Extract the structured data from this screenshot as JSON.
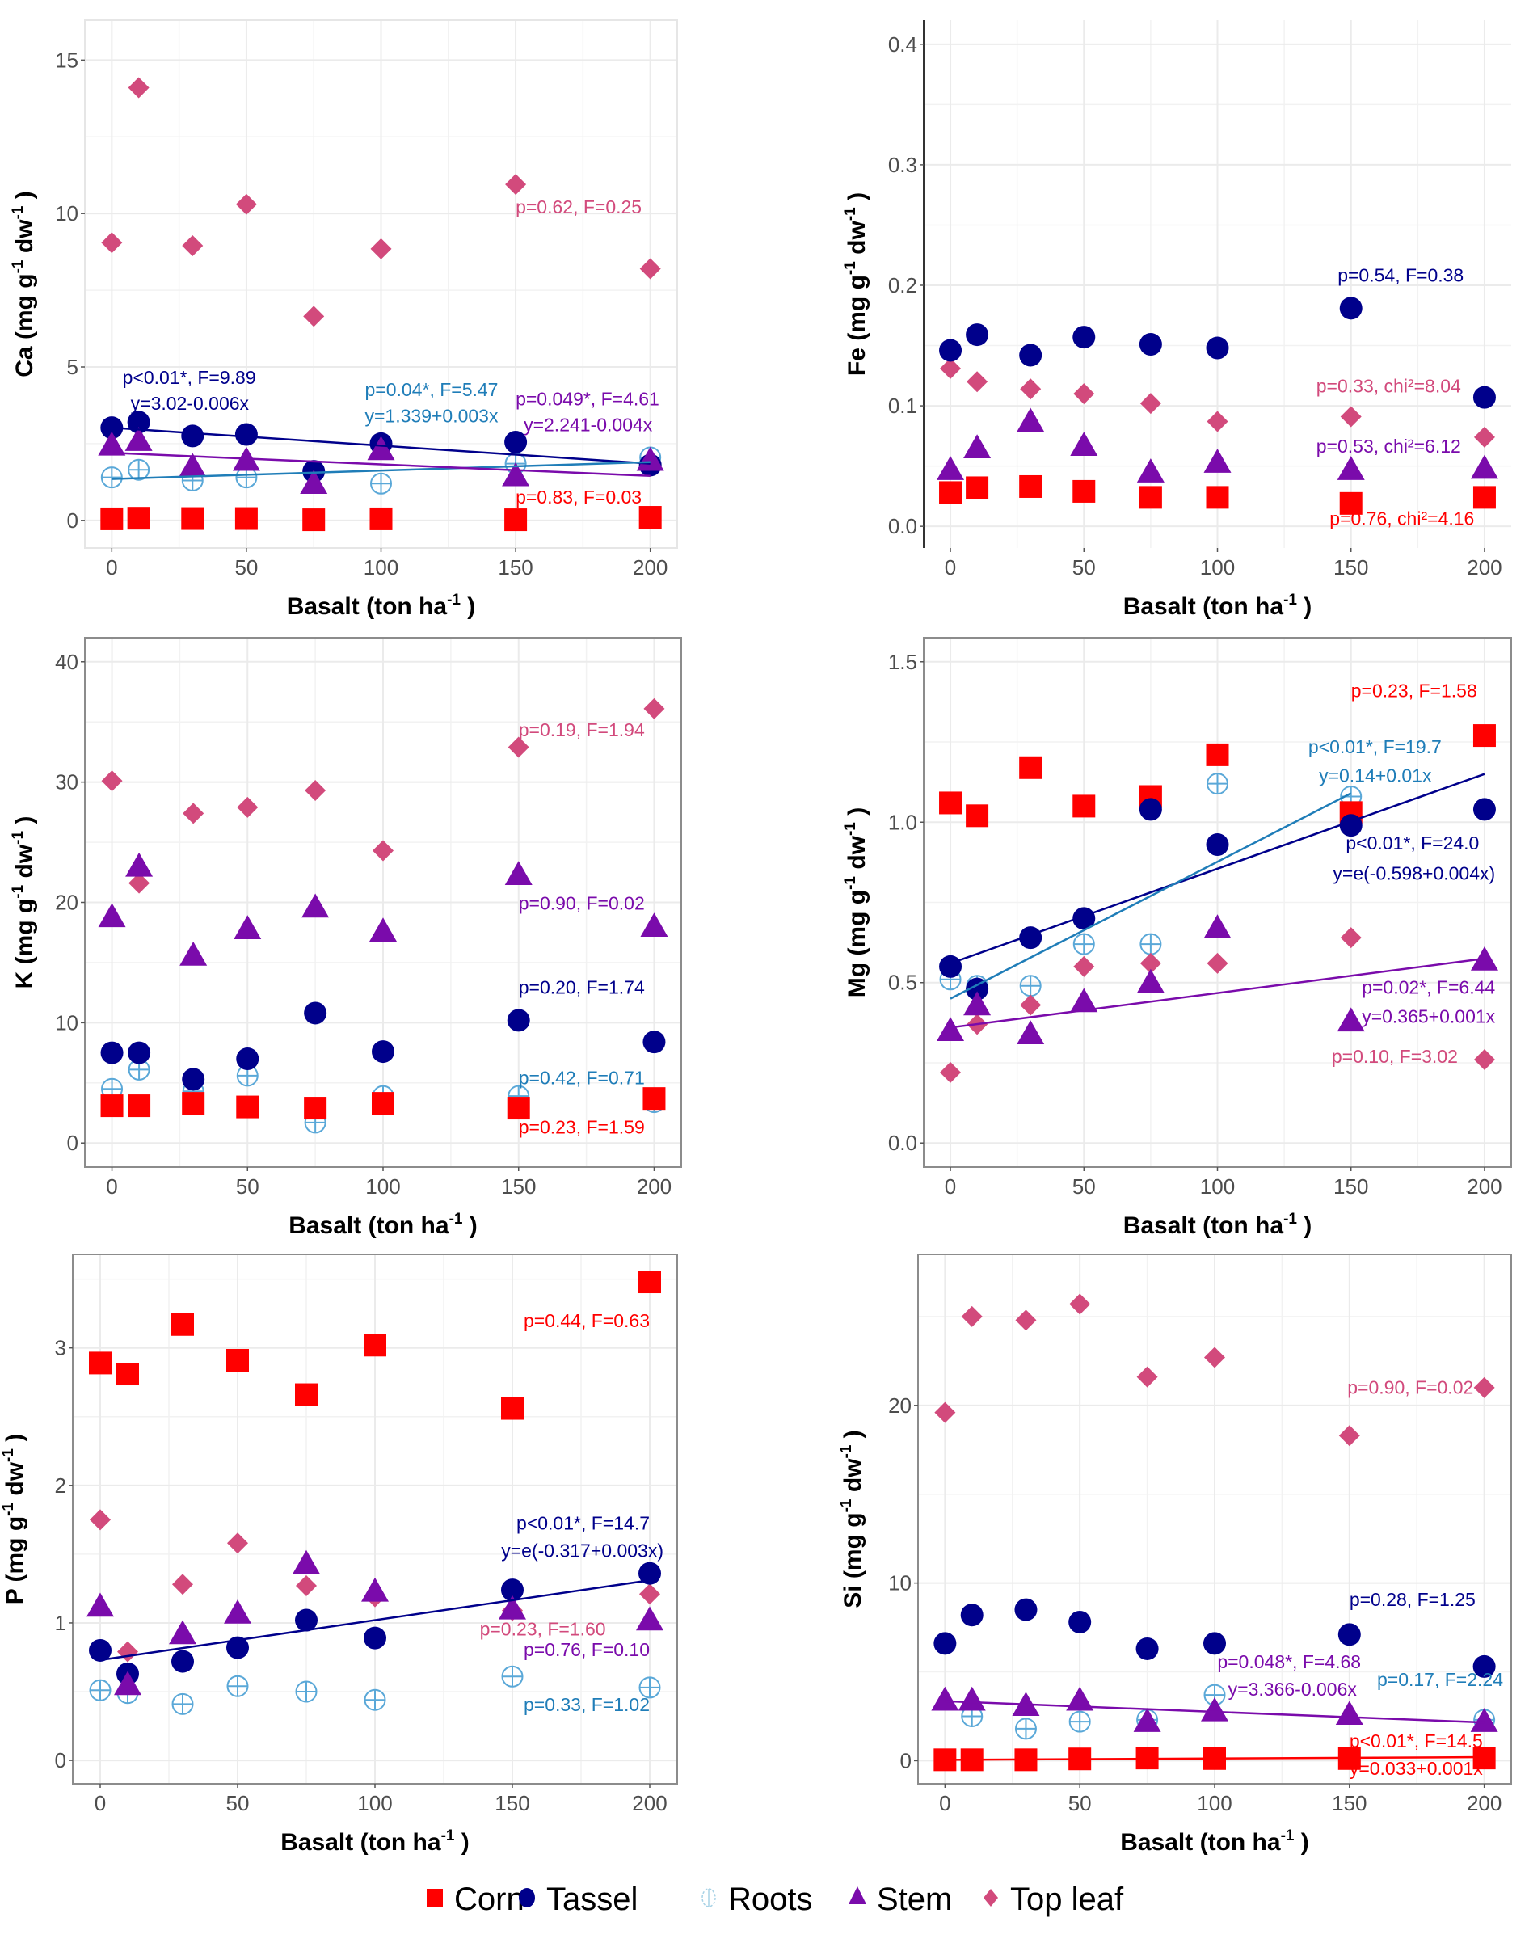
{
  "chart_data": [
    {
      "type": "scatter",
      "panel": "Ca",
      "ylabel": "Ca (mg g-1 dw-1 )",
      "ylabel_main": "Ca (mg g",
      "ylabel_unit": "dw",
      "ylabel_sup": "-1",
      "xlabel_main": "Basalt (ton ha",
      "xlabel_sup": "-1",
      "xlabel_end": " )",
      "x": [
        0,
        10,
        30,
        50,
        75,
        100,
        150,
        200
      ],
      "xticks": [
        0,
        50,
        100,
        150,
        200
      ],
      "yticks": [
        0,
        5,
        10,
        15
      ],
      "ytick_labels": [
        "0",
        "5",
        "10",
        "15"
      ],
      "ylim": [
        -0.9,
        16.3
      ],
      "xlim": [
        -10,
        210
      ],
      "frame": "box-light",
      "series": [
        {
          "name": "Corn",
          "values": [
            0.05,
            0.07,
            0.06,
            0.06,
            0.02,
            0.05,
            0.02,
            0.1
          ]
        },
        {
          "name": "Tassel",
          "values": [
            3.02,
            3.2,
            2.75,
            2.8,
            1.6,
            2.5,
            2.55,
            1.8
          ]
        },
        {
          "name": "Roots",
          "values": [
            1.4,
            1.65,
            1.3,
            1.4,
            1.6,
            1.2,
            1.85,
            2.05
          ]
        },
        {
          "name": "Stem",
          "values": [
            2.45,
            2.6,
            1.75,
            1.95,
            1.2,
            2.3,
            1.45,
            1.95
          ]
        },
        {
          "name": "Top leaf",
          "values": [
            9.05,
            14.1,
            8.95,
            10.3,
            6.65,
            8.85,
            10.95,
            8.2
          ]
        }
      ],
      "fits": [
        {
          "series": "Tassel",
          "x0": 0,
          "y0": 3.02,
          "x1": 200,
          "y1": 1.85
        },
        {
          "series": "Roots",
          "x0": 0,
          "y0": 1.35,
          "x1": 200,
          "y1": 1.9
        },
        {
          "series": "Stem",
          "x0": 0,
          "y0": 2.2,
          "x1": 200,
          "y1": 1.45
        }
      ],
      "annotations": [
        {
          "text": "p=0.62, F=0.25",
          "series": "Top leaf",
          "x": 150,
          "y": 10.0,
          "anchor": "start"
        },
        {
          "text": "p<0.01*, F=9.89",
          "series": "Tassel",
          "x": 4,
          "y": 4.45,
          "anchor": "start"
        },
        {
          "text": "y=3.02-0.006x",
          "series": "Tassel",
          "x": 7,
          "y": 3.6,
          "anchor": "start"
        },
        {
          "text": "p=0.04*, F=5.47",
          "series": "Roots",
          "x": 94,
          "y": 4.05,
          "anchor": "start"
        },
        {
          "text": "y=1.339+0.003x",
          "series": "Roots",
          "x": 94,
          "y": 3.2,
          "anchor": "start"
        },
        {
          "text": "p=0.049*, F=4.61",
          "series": "Stem",
          "x": 150,
          "y": 3.75,
          "anchor": "start"
        },
        {
          "text": "y=2.241-0.004x",
          "series": "Stem",
          "x": 153,
          "y": 2.9,
          "anchor": "start"
        },
        {
          "text": "p=0.83, F=0.03",
          "series": "Corn",
          "x": 150,
          "y": 0.55,
          "anchor": "start"
        }
      ]
    },
    {
      "type": "scatter",
      "panel": "Fe",
      "ylabel_main": "Fe (mg g",
      "ylabel_unit": "dw",
      "ylabel_sup": "-1",
      "xlabel_main": "Basalt (ton ha",
      "xlabel_sup": "-1",
      "xlabel_end": " )",
      "x": [
        0,
        10,
        30,
        50,
        75,
        100,
        150,
        200
      ],
      "xticks": [
        0,
        50,
        100,
        150,
        200
      ],
      "yticks": [
        0.0,
        0.1,
        0.2,
        0.3,
        0.4
      ],
      "ytick_labels": [
        "0.0",
        "0.1",
        "0.2",
        "0.3",
        "0.4"
      ],
      "ylim": [
        -0.018,
        0.42
      ],
      "xlim": [
        -10,
        210
      ],
      "frame": "left-axis",
      "series": [
        {
          "name": "Corn",
          "values": [
            0.028,
            0.032,
            0.033,
            0.029,
            0.024,
            0.024,
            0.019,
            0.024
          ]
        },
        {
          "name": "Tassel",
          "values": [
            0.146,
            0.159,
            0.142,
            0.157,
            0.151,
            0.148,
            0.181,
            0.107
          ]
        },
        {
          "name": "Stem",
          "values": [
            0.047,
            0.065,
            0.087,
            0.067,
            0.045,
            0.053,
            0.047,
            0.048
          ]
        },
        {
          "name": "Top leaf",
          "values": [
            0.131,
            0.12,
            0.114,
            0.11,
            0.102,
            0.087,
            0.091,
            0.074
          ]
        }
      ],
      "fits": [],
      "annotations": [
        {
          "text": "p=0.54, F=0.38",
          "series": "Tassel",
          "x": 145,
          "y": 0.203,
          "anchor": "start"
        },
        {
          "text": "p=0.33, chi²=8.04",
          "series": "Top leaf",
          "x": 137,
          "y": 0.111,
          "anchor": "start"
        },
        {
          "text": "p=0.53, chi²=6.12",
          "series": "Stem",
          "x": 137,
          "y": 0.061,
          "anchor": "start"
        },
        {
          "text": "p=0.76, chi²=4.16",
          "series": "Corn",
          "x": 142,
          "y": 0.001,
          "anchor": "start"
        }
      ]
    },
    {
      "type": "scatter",
      "panel": "K",
      "ylabel_main": "K (mg g",
      "ylabel_unit": "dw",
      "ylabel_sup": "-1",
      "xlabel_main": "Basalt (ton ha",
      "xlabel_sup": "-1",
      "xlabel_end": " )",
      "x": [
        0,
        10,
        30,
        50,
        75,
        100,
        150,
        200
      ],
      "xticks": [
        0,
        50,
        100,
        150,
        200
      ],
      "yticks": [
        0,
        10,
        20,
        30,
        40
      ],
      "ytick_labels": [
        "0",
        "10",
        "20",
        "30",
        "40"
      ],
      "ylim": [
        -2,
        42
      ],
      "xlim": [
        -10,
        210
      ],
      "frame": "box",
      "series": [
        {
          "name": "Corn",
          "values": [
            3.1,
            3.1,
            3.3,
            3.0,
            2.9,
            3.3,
            2.9,
            3.7
          ]
        },
        {
          "name": "Tassel",
          "values": [
            7.5,
            7.5,
            5.3,
            7.0,
            10.8,
            7.6,
            10.2,
            8.4
          ]
        },
        {
          "name": "Roots",
          "values": [
            4.5,
            6.1,
            4.3,
            5.6,
            1.7,
            3.9,
            3.9,
            3.4
          ]
        },
        {
          "name": "Stem",
          "values": [
            18.8,
            23.0,
            15.6,
            17.8,
            19.6,
            17.6,
            22.3,
            18.0
          ]
        },
        {
          "name": "Top leaf",
          "values": [
            30.1,
            21.6,
            27.4,
            27.9,
            29.3,
            24.3,
            32.9,
            36.1
          ]
        }
      ],
      "fits": [],
      "annotations": [
        {
          "text": "p=0.19, F=1.94",
          "series": "Top leaf",
          "x": 150,
          "y": 33.8,
          "anchor": "start"
        },
        {
          "text": "p=0.90, F=0.02",
          "series": "Stem",
          "x": 150,
          "y": 19.4,
          "anchor": "start"
        },
        {
          "text": "p=0.20, F=1.74",
          "series": "Tassel",
          "x": 150,
          "y": 12.4,
          "anchor": "start"
        },
        {
          "text": "p=0.42, F=0.71",
          "series": "Roots",
          "x": 150,
          "y": 4.9,
          "anchor": "start"
        },
        {
          "text": "p=0.23, F=1.59",
          "series": "Corn",
          "x": 150,
          "y": 0.8,
          "anchor": "start"
        }
      ]
    },
    {
      "type": "scatter",
      "panel": "Mg",
      "ylabel_main": "Mg (mg g",
      "ylabel_unit": "dw",
      "ylabel_sup": "-1",
      "xlabel_main": "Basalt (ton ha",
      "xlabel_sup": "-1",
      "xlabel_end": " )",
      "x": [
        0,
        10,
        30,
        50,
        75,
        100,
        150,
        200
      ],
      "xticks": [
        0,
        50,
        100,
        150,
        200
      ],
      "yticks": [
        0.0,
        0.5,
        1.0,
        1.5
      ],
      "ytick_labels": [
        "0.0",
        "0.5",
        "1.0",
        "1.5"
      ],
      "ylim": [
        -0.075,
        1.575
      ],
      "xlim": [
        -10,
        210
      ],
      "frame": "box",
      "series": [
        {
          "name": "Corn",
          "values": [
            1.06,
            1.02,
            1.17,
            1.05,
            1.08,
            1.21,
            1.03,
            1.27
          ]
        },
        {
          "name": "Tassel",
          "values": [
            0.55,
            0.48,
            0.64,
            0.7,
            1.04,
            0.93,
            0.99,
            1.04
          ]
        },
        {
          "name": "Roots",
          "values": [
            0.51,
            0.49,
            0.49,
            0.62,
            0.62,
            1.12,
            1.08,
            null
          ]
        },
        {
          "name": "Stem",
          "values": [
            0.35,
            0.43,
            0.34,
            0.44,
            0.5,
            0.67,
            0.38,
            0.57
          ]
        },
        {
          "name": "Top leaf",
          "values": [
            0.22,
            0.37,
            0.43,
            0.55,
            0.56,
            0.56,
            0.64,
            0.26
          ]
        }
      ],
      "fits": [
        {
          "series": "Tassel",
          "x0": 0,
          "y0": 0.56,
          "x1": 200,
          "y1": 1.15
        },
        {
          "series": "Roots",
          "x0": 0,
          "y0": 0.45,
          "x1": 150,
          "y1": 1.09
        },
        {
          "series": "Stem",
          "x0": 0,
          "y0": 0.36,
          "x1": 200,
          "y1": 0.575
        }
      ],
      "annotations": [
        {
          "text": "p=0.23, F=1.58",
          "series": "Corn",
          "x": 150,
          "y": 1.39,
          "anchor": "start"
        },
        {
          "text": "p<0.01*, F=19.7",
          "series": "Roots",
          "x": 134,
          "y": 1.215,
          "anchor": "start"
        },
        {
          "text": "y=0.14+0.01x",
          "series": "Roots",
          "x": 138,
          "y": 1.125,
          "anchor": "start"
        },
        {
          "text": "p<0.01*, F=24.0",
          "series": "Tassel",
          "x": 198,
          "y": 0.915,
          "anchor": "end"
        },
        {
          "text": "y=e(-0.598+0.004x)",
          "series": "Tassel",
          "x": 204,
          "y": 0.82,
          "anchor": "end"
        },
        {
          "text": "p=0.02*, F=6.44",
          "series": "Stem",
          "x": 204,
          "y": 0.465,
          "anchor": "end"
        },
        {
          "text": "y=0.365+0.001x",
          "series": "Stem",
          "x": 204,
          "y": 0.375,
          "anchor": "end"
        },
        {
          "text": "p=0.10, F=3.02",
          "series": "Top leaf",
          "x": 190,
          "y": 0.25,
          "anchor": "end"
        }
      ]
    },
    {
      "type": "scatter",
      "panel": "P",
      "ylabel_main": "P (mg g",
      "ylabel_unit": "dw",
      "ylabel_sup": "-1",
      "xlabel_main": "Basalt (ton ha",
      "xlabel_sup": "-1",
      "xlabel_end": " )",
      "x": [
        0,
        10,
        30,
        50,
        75,
        100,
        150,
        200
      ],
      "xticks": [
        0,
        50,
        100,
        150,
        200
      ],
      "yticks": [
        0,
        1,
        2,
        3
      ],
      "ytick_labels": [
        "0",
        "1",
        "2",
        "3"
      ],
      "ylim": [
        -0.17,
        3.68
      ],
      "xlim": [
        -10,
        210
      ],
      "frame": "box",
      "series": [
        {
          "name": "Corn",
          "values": [
            2.89,
            2.81,
            3.17,
            2.91,
            2.66,
            3.02,
            2.56,
            3.48
          ]
        },
        {
          "name": "Tassel",
          "values": [
            0.8,
            0.63,
            0.72,
            0.82,
            1.02,
            0.89,
            1.24,
            1.36
          ]
        },
        {
          "name": "Roots",
          "values": [
            0.51,
            0.49,
            0.41,
            0.54,
            0.5,
            0.44,
            0.61,
            0.53
          ]
        },
        {
          "name": "Stem",
          "values": [
            1.12,
            0.55,
            0.92,
            1.07,
            1.43,
            1.23,
            1.1,
            1.02
          ]
        },
        {
          "name": "Top leaf",
          "values": [
            1.75,
            0.79,
            1.28,
            1.58,
            1.27,
            1.19,
            1.09,
            1.21
          ]
        }
      ],
      "fits": [
        {
          "series": "Tassel",
          "x0": 0,
          "y0": 0.73,
          "x1": 200,
          "y1": 1.31
        }
      ],
      "annotations": [
        {
          "text": "p=0.44, F=0.63",
          "series": "Corn",
          "x": 200,
          "y": 3.15,
          "anchor": "end"
        },
        {
          "text": "p<0.01*, F=14.7",
          "series": "Tassel",
          "x": 200,
          "y": 1.68,
          "anchor": "end"
        },
        {
          "text": "y=e(-0.317+0.003x)",
          "series": "Tassel",
          "x": 205,
          "y": 1.48,
          "anchor": "end"
        },
        {
          "text": "p=0.23, F=1.60",
          "series": "Top leaf",
          "x": 184,
          "y": 0.91,
          "anchor": "end"
        },
        {
          "text": "p=0.76, F=0.10",
          "series": "Stem",
          "x": 200,
          "y": 0.76,
          "anchor": "end"
        },
        {
          "text": "p=0.33, F=1.02",
          "series": "Roots",
          "x": 200,
          "y": 0.36,
          "anchor": "end"
        }
      ]
    },
    {
      "type": "scatter",
      "panel": "Si",
      "ylabel_main": "Si (mg g",
      "ylabel_unit": "dw",
      "ylabel_sup": "-1",
      "xlabel_main": "Basalt (ton ha",
      "xlabel_sup": "-1",
      "xlabel_end": " )",
      "x": [
        0,
        10,
        30,
        50,
        75,
        100,
        150,
        200
      ],
      "xticks": [
        0,
        50,
        100,
        150,
        200
      ],
      "yticks": [
        0,
        10,
        20
      ],
      "ytick_labels": [
        "0",
        "10",
        "20"
      ],
      "ylim": [
        -1.3,
        28.5
      ],
      "xlim": [
        -10,
        210
      ],
      "frame": "box",
      "series": [
        {
          "name": "Corn",
          "values": [
            0.05,
            0.05,
            0.05,
            0.1,
            0.15,
            0.12,
            0.12,
            0.15
          ]
        },
        {
          "name": "Tassel",
          "values": [
            6.6,
            8.2,
            8.5,
            7.8,
            6.3,
            6.6,
            7.1,
            5.3
          ]
        },
        {
          "name": "Roots",
          "values": [
            null,
            2.5,
            1.8,
            2.2,
            2.3,
            3.7,
            null,
            2.3
          ]
        },
        {
          "name": "Stem",
          "values": [
            3.4,
            3.4,
            3.1,
            3.4,
            2.2,
            2.8,
            2.6,
            2.2
          ]
        },
        {
          "name": "Top leaf",
          "values": [
            19.6,
            25.0,
            24.8,
            25.7,
            21.6,
            22.7,
            18.3,
            21.0
          ]
        }
      ],
      "fits": [
        {
          "series": "Stem",
          "x0": 0,
          "y0": 3.35,
          "x1": 200,
          "y1": 2.15
        },
        {
          "series": "Corn",
          "x0": 0,
          "y0": 0.05,
          "x1": 200,
          "y1": 0.2
        }
      ],
      "annotations": [
        {
          "text": "p=0.90, F=0.02",
          "series": "Top leaf",
          "x": 196,
          "y": 20.65,
          "anchor": "end"
        },
        {
          "text": "p=0.28, F=1.25",
          "series": "Tassel",
          "x": 150,
          "y": 8.7,
          "anchor": "start"
        },
        {
          "text": "p=0.048*, F=4.68",
          "series": "Stem",
          "x": 101,
          "y": 5.2,
          "anchor": "start"
        },
        {
          "text": "y=3.366-0.006x",
          "series": "Stem",
          "x": 105,
          "y": 3.65,
          "anchor": "start"
        },
        {
          "text": "p=0.17, F=2.24",
          "series": "Roots",
          "x": 207,
          "y": 4.2,
          "anchor": "end"
        },
        {
          "text": "p<0.01*, F=14.5",
          "series": "Corn",
          "x": 150,
          "y": 0.75,
          "anchor": "start"
        },
        {
          "text": "y=0.033+0.001x",
          "series": "Corn",
          "x": 150,
          "y": -0.8,
          "anchor": "start"
        }
      ]
    }
  ],
  "legend": {
    "placement": "bottom",
    "items": [
      {
        "name": "Corn",
        "symbol": "square",
        "color": "#ff0000"
      },
      {
        "name": "Tassel",
        "symbol": "circle",
        "color": "#00008b"
      },
      {
        "name": "Roots",
        "symbol": "circle-plus-open",
        "color": "#5aa8d8"
      },
      {
        "name": "Stem",
        "symbol": "triangle",
        "color": "#7a0bab"
      },
      {
        "name": "Top leaf",
        "symbol": "diamond",
        "color": "#d24a7c"
      }
    ]
  },
  "colors": {
    "Corn": "#ff0000",
    "Tassel": "#00008b",
    "Roots": "#5aa8d8",
    "RootsText": "#1f7db8",
    "Stem": "#7a0bab",
    "Top leaf": "#d24a7c"
  }
}
